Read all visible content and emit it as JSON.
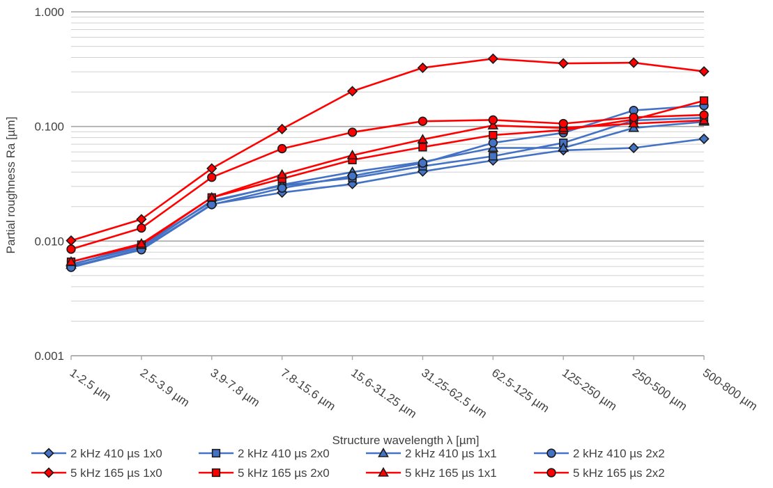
{
  "chart_data": {
    "type": "line",
    "title": "",
    "xlabel": "Structure wavelength λ [µm]",
    "ylabel": "Partial roughness Ra [µm]",
    "yscale": "log",
    "ylim": [
      0.001,
      1.0
    ],
    "y_ticks": [
      "0.001",
      "0.010",
      "0.100",
      "1.000"
    ],
    "grid": "major and minor horizontal",
    "legend_position": "bottom",
    "categories": [
      "1-2.5 µm",
      "2.5-3.9 µm",
      "3.9-7.8 µm",
      "7.8-15.6 µm",
      "15.6-31.25 µm",
      "31.25-62.5 µm",
      "62.5-125 µm",
      "125-250 µm",
      "250-500 µm",
      "500-800 µm"
    ],
    "series": [
      {
        "name": "2 kHz 410 µs 1x0",
        "color": "#4472c4",
        "marker": "diamond",
        "values": [
          0.006,
          0.0085,
          0.021,
          0.0265,
          0.0315,
          0.0405,
          0.0505,
          0.062,
          0.065,
          0.078
        ]
      },
      {
        "name": "2 kHz 410 µs 2x0",
        "color": "#4472c4",
        "marker": "square",
        "values": [
          0.0063,
          0.0088,
          0.0225,
          0.0305,
          0.0355,
          0.045,
          0.055,
          0.072,
          0.113,
          0.119
        ]
      },
      {
        "name": "2 kHz 410 µs 1x1",
        "color": "#4472c4",
        "marker": "triangle",
        "values": [
          0.0062,
          0.0092,
          0.022,
          0.031,
          0.04,
          0.049,
          0.065,
          0.065,
          0.097,
          0.11
        ]
      },
      {
        "name": "2 kHz 410 µs 2x2",
        "color": "#4472c4",
        "marker": "circle",
        "values": [
          0.0059,
          0.0084,
          0.0208,
          0.029,
          0.037,
          0.048,
          0.072,
          0.088,
          0.138,
          0.152
        ]
      },
      {
        "name": "5 kHz 165 µs 1x0",
        "color": "#ff0000",
        "marker": "diamond",
        "values": [
          0.0101,
          0.0155,
          0.043,
          0.095,
          0.203,
          0.325,
          0.39,
          0.355,
          0.36,
          0.302
        ]
      },
      {
        "name": "5 kHz 165 µs 2x0",
        "color": "#ff0000",
        "marker": "square",
        "values": [
          0.0066,
          0.0093,
          0.024,
          0.035,
          0.051,
          0.066,
          0.084,
          0.093,
          0.115,
          0.168
        ]
      },
      {
        "name": "5 kHz 165 µs 1x1",
        "color": "#ff0000",
        "marker": "triangle",
        "values": [
          0.0066,
          0.0095,
          0.024,
          0.038,
          0.056,
          0.077,
          0.102,
          0.097,
          0.106,
          0.113
        ]
      },
      {
        "name": "5 kHz 165 µs 2x2",
        "color": "#ff0000",
        "marker": "circle",
        "values": [
          0.0085,
          0.013,
          0.036,
          0.064,
          0.089,
          0.111,
          0.114,
          0.106,
          0.12,
          0.126
        ]
      }
    ]
  }
}
